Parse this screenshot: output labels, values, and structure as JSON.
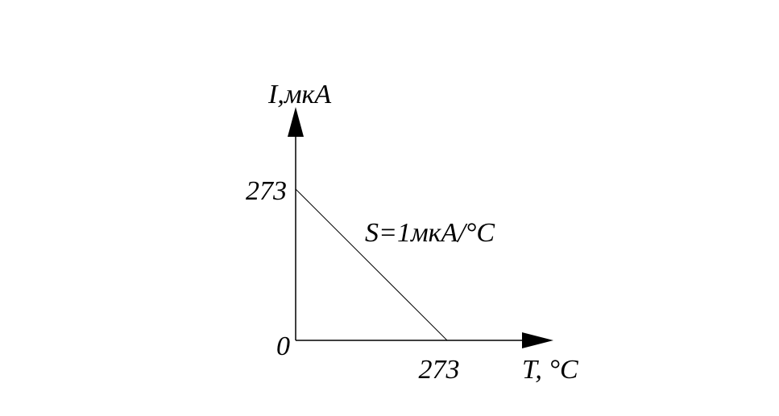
{
  "chart_data": {
    "type": "line",
    "xlabel": "T, °C",
    "ylabel": "I,мкА",
    "x_ticks": [
      "273"
    ],
    "y_ticks": [
      "273"
    ],
    "origin_label": "0",
    "xlim": [
      0,
      460
    ],
    "ylim": [
      0,
      470
    ],
    "grid": false,
    "series": [
      {
        "x": [
          0,
          273
        ],
        "y": [
          273,
          0
        ]
      }
    ],
    "annotation": "S=1мкА/°C",
    "colors": {
      "line": "#000000",
      "axes": "#000000",
      "background": "#ffffff"
    }
  }
}
